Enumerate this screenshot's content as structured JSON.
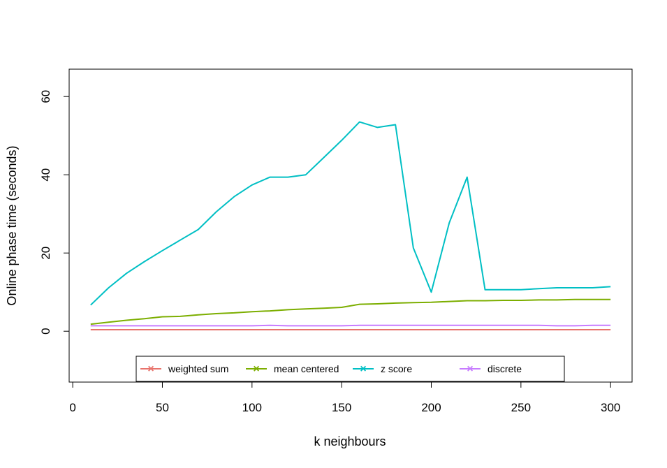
{
  "chart_data": {
    "type": "line",
    "title": "",
    "xlabel": "k neighbours",
    "ylabel": "Online phase time (seconds)",
    "xlim": [
      -2,
      312
    ],
    "ylim": [
      -13,
      67
    ],
    "x_ticks": [
      0,
      50,
      100,
      150,
      200,
      250,
      300
    ],
    "y_ticks": [
      0,
      20,
      40,
      60
    ],
    "grid": false,
    "legend_position": "bottom-center",
    "x": [
      10,
      20,
      30,
      40,
      50,
      60,
      70,
      80,
      90,
      100,
      110,
      120,
      130,
      140,
      150,
      160,
      170,
      180,
      190,
      200,
      210,
      220,
      230,
      240,
      250,
      260,
      270,
      280,
      290,
      300
    ],
    "series": [
      {
        "name": "weighted sum",
        "color": "#E8736C",
        "marker": "×",
        "values": [
          0.4,
          0.4,
          0.4,
          0.4,
          0.4,
          0.4,
          0.4,
          0.4,
          0.4,
          0.4,
          0.4,
          0.4,
          0.4,
          0.4,
          0.4,
          0.4,
          0.4,
          0.4,
          0.4,
          0.4,
          0.4,
          0.4,
          0.4,
          0.4,
          0.4,
          0.4,
          0.4,
          0.4,
          0.4,
          0.4
        ]
      },
      {
        "name": "mean centered",
        "color": "#7CAE00",
        "marker": "×",
        "values": [
          1.8,
          2.3,
          2.8,
          3.2,
          3.7,
          3.8,
          4.2,
          4.5,
          4.7,
          5.0,
          5.2,
          5.5,
          5.7,
          5.9,
          6.1,
          6.9,
          7.0,
          7.2,
          7.3,
          7.4,
          7.6,
          7.8,
          7.8,
          7.9,
          7.9,
          8.0,
          8.0,
          8.1,
          8.1,
          8.1
        ]
      },
      {
        "name": "z score",
        "color": "#00BFC4",
        "marker": "×",
        "values": [
          6.7,
          11.1,
          14.8,
          17.8,
          20.6,
          23.3,
          26.0,
          30.5,
          34.4,
          37.4,
          39.4,
          39.4,
          40.0,
          44.4,
          48.8,
          53.5,
          52.1,
          52.8,
          21.3,
          10.0,
          27.7,
          39.4,
          10.6,
          10.6,
          10.6,
          10.9,
          11.1,
          11.1,
          11.1,
          11.4
        ]
      },
      {
        "name": "discrete",
        "color": "#C77CFF",
        "marker": "×",
        "values": [
          1.4,
          1.4,
          1.4,
          1.4,
          1.4,
          1.4,
          1.4,
          1.4,
          1.4,
          1.4,
          1.5,
          1.4,
          1.4,
          1.4,
          1.4,
          1.5,
          1.5,
          1.5,
          1.5,
          1.5,
          1.5,
          1.5,
          1.5,
          1.5,
          1.5,
          1.5,
          1.4,
          1.4,
          1.5,
          1.5
        ]
      }
    ]
  }
}
